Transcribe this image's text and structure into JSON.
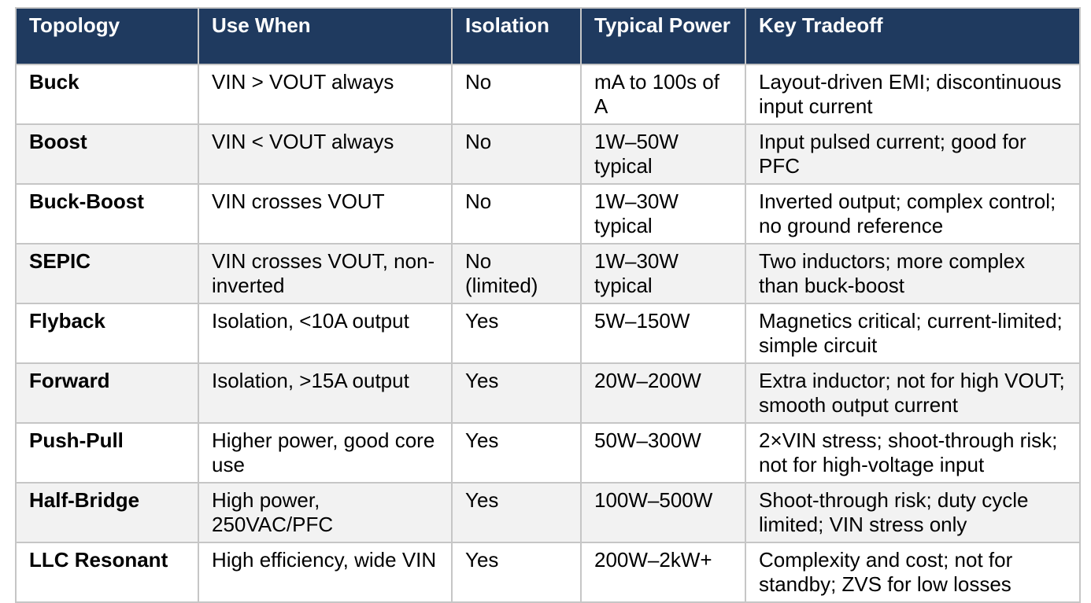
{
  "colors": {
    "header_bg": "#1f3a5f",
    "header_text": "#ffffff",
    "row_alt_bg": "#f2f2f2",
    "border": "#c6c6c6",
    "body_text": "#000000"
  },
  "table": {
    "columns": {
      "topology": "Topology",
      "use_when": "Use When",
      "isolation": "Isolation",
      "typical_power": "Typical Power",
      "key_tradeoff": "Key Tradeoff"
    },
    "rows": [
      {
        "topology": "Buck",
        "use_when": "VIN > VOUT always",
        "isolation": "No",
        "typical_power": "mA to 100s of A",
        "key_tradeoff": "Layout-driven EMI; discontinuous input current"
      },
      {
        "topology": "Boost",
        "use_when": "VIN < VOUT always",
        "isolation": "No",
        "typical_power": "1W–50W typical",
        "key_tradeoff": "Input pulsed current; good for PFC"
      },
      {
        "topology": "Buck-Boost",
        "use_when": "VIN crosses VOUT",
        "isolation": "No",
        "typical_power": "1W–30W typical",
        "key_tradeoff": "Inverted output; complex control; no ground reference"
      },
      {
        "topology": "SEPIC",
        "use_when": "VIN crosses VOUT, non-inverted",
        "isolation": "No (limited)",
        "typical_power": "1W–30W typical",
        "key_tradeoff": "Two inductors; more complex than buck-boost"
      },
      {
        "topology": "Flyback",
        "use_when": "Isolation, <10A output",
        "isolation": "Yes",
        "typical_power": "5W–150W",
        "key_tradeoff": "Magnetics critical; current-limited; simple circuit"
      },
      {
        "topology": "Forward",
        "use_when": "Isolation, >15A output",
        "isolation": "Yes",
        "typical_power": "20W–200W",
        "key_tradeoff": "Extra inductor; not for high VOUT; smooth output current"
      },
      {
        "topology": "Push-Pull",
        "use_when": "Higher power, good core use",
        "isolation": "Yes",
        "typical_power": "50W–300W",
        "key_tradeoff": "2×VIN stress; shoot-through risk; not for high-voltage input"
      },
      {
        "topology": "Half-Bridge",
        "use_when": "High power, 250VAC/PFC",
        "isolation": "Yes",
        "typical_power": "100W–500W",
        "key_tradeoff": "Shoot-through risk; duty cycle limited; VIN stress only"
      },
      {
        "topology": "LLC Resonant",
        "use_when": "High efficiency, wide VIN",
        "isolation": "Yes",
        "typical_power": "200W–2kW+",
        "key_tradeoff": "Complexity and cost; not for standby; ZVS for low losses"
      }
    ]
  }
}
